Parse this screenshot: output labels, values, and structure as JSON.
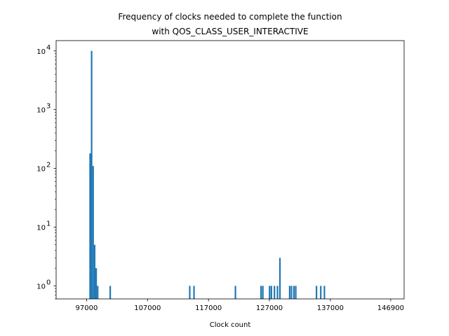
{
  "chart_data": {
    "type": "bar",
    "title_line1": "Frequency of clocks needed to complete the function",
    "title_line2": "with QOS_CLASS_USER_INTERACTIVE",
    "xlabel": "Clock count",
    "ylabel": "",
    "yscale": "log",
    "xlim": [
      92000,
      149100
    ],
    "ylim": [
      0.6,
      15000
    ],
    "x_ticks": [
      97000,
      107000,
      117000,
      127000,
      137000,
      146900
    ],
    "x_tick_labels": [
      "97000",
      "107000",
      "117000",
      "127000",
      "137000",
      "146900"
    ],
    "y_ticks": [
      1,
      10,
      100,
      1000,
      10000
    ],
    "y_tick_labels": [
      "10",
      "10",
      "10",
      "10",
      "10"
    ],
    "y_tick_exponents": [
      "0",
      "1",
      "2",
      "3",
      "4"
    ],
    "bin_width": 249.5,
    "bars": [
      {
        "x": 97450,
        "y": 180
      },
      {
        "x": 97700,
        "y": 10000
      },
      {
        "x": 97950,
        "y": 110
      },
      {
        "x": 98200,
        "y": 5
      },
      {
        "x": 98450,
        "y": 2
      },
      {
        "x": 98700,
        "y": 1
      },
      {
        "x": 100750,
        "y": 1
      },
      {
        "x": 113800,
        "y": 1
      },
      {
        "x": 114500,
        "y": 1
      },
      {
        "x": 121300,
        "y": 1
      },
      {
        "x": 125500,
        "y": 1
      },
      {
        "x": 125800,
        "y": 1
      },
      {
        "x": 126900,
        "y": 1
      },
      {
        "x": 127200,
        "y": 1
      },
      {
        "x": 127700,
        "y": 1
      },
      {
        "x": 128200,
        "y": 1
      },
      {
        "x": 128600,
        "y": 3
      },
      {
        "x": 130200,
        "y": 1
      },
      {
        "x": 130500,
        "y": 1
      },
      {
        "x": 130900,
        "y": 1
      },
      {
        "x": 131200,
        "y": 1
      },
      {
        "x": 134600,
        "y": 1
      },
      {
        "x": 135300,
        "y": 1
      },
      {
        "x": 135900,
        "y": 1
      }
    ],
    "bar_color": "#1f77b4",
    "grid": false,
    "legend": "none"
  }
}
